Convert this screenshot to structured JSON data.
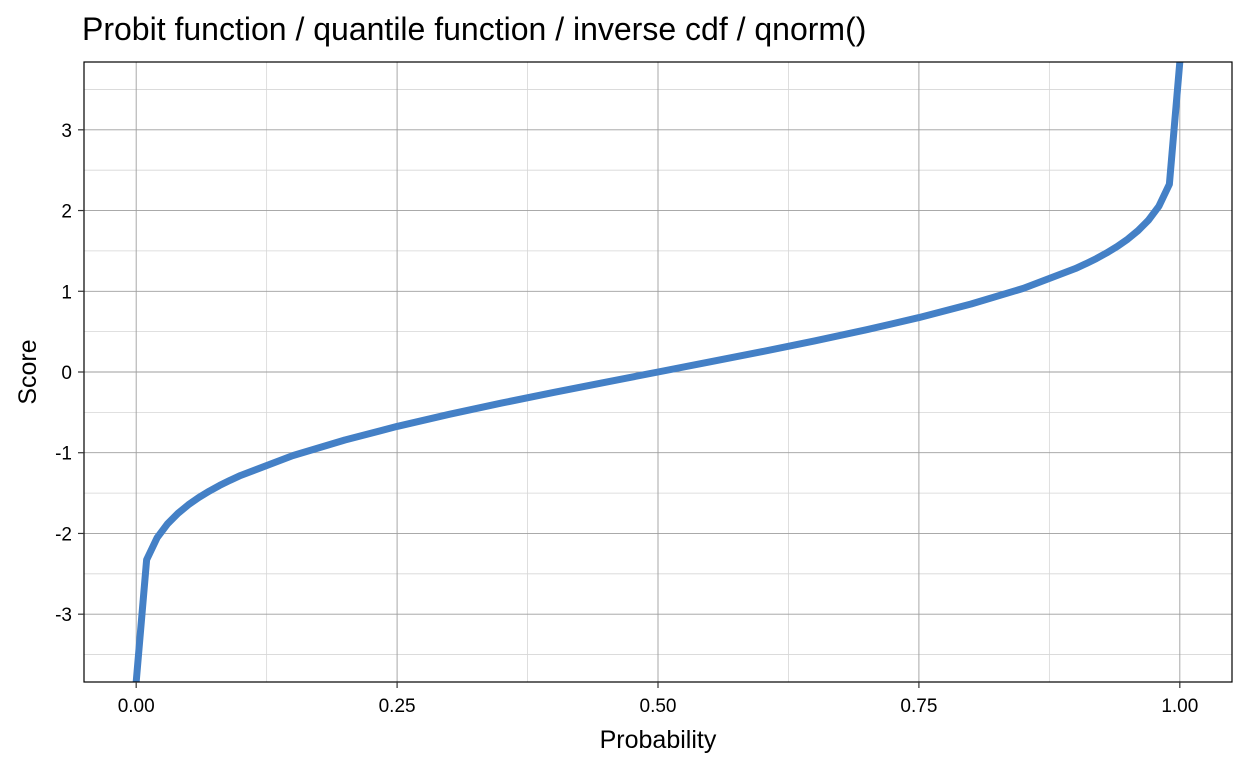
{
  "chart_data": {
    "type": "line",
    "title": "Probit function / quantile function / inverse cdf / qnorm()",
    "xlabel": "Probability",
    "ylabel": "Score",
    "xlim": [
      -0.05,
      1.05
    ],
    "ylim": [
      -3.84,
      3.84
    ],
    "x_ticks": [
      0,
      0.25,
      0.5,
      0.75,
      1
    ],
    "x_tick_labels": [
      "0.00",
      "0.25",
      "0.50",
      "0.75",
      "1.00"
    ],
    "y_ticks": [
      -3,
      -2,
      -1,
      0,
      1,
      2,
      3
    ],
    "y_tick_labels": [
      "-3",
      "-2",
      "-1",
      "0",
      "1",
      "2",
      "3"
    ],
    "grid": true,
    "legend": "none",
    "series": [
      {
        "color": "#4480c6",
        "x": [
          0,
          0.01,
          0.02,
          0.03,
          0.04,
          0.05,
          0.06,
          0.07,
          0.08,
          0.09,
          0.1,
          0.15,
          0.2,
          0.25,
          0.3,
          0.35,
          0.4,
          0.45,
          0.5,
          0.55,
          0.6,
          0.65,
          0.7,
          0.75,
          0.8,
          0.85,
          0.9,
          0.91,
          0.92,
          0.93,
          0.94,
          0.95,
          0.96,
          0.97,
          0.98,
          0.99,
          1
        ],
        "y": [
          -3.84,
          -2.326,
          -2.054,
          -1.881,
          -1.751,
          -1.645,
          -1.555,
          -1.476,
          -1.405,
          -1.341,
          -1.282,
          -1.036,
          -0.842,
          -0.674,
          -0.524,
          -0.385,
          -0.253,
          -0.126,
          0,
          0.126,
          0.253,
          0.385,
          0.524,
          0.674,
          0.842,
          1.036,
          1.282,
          1.341,
          1.405,
          1.476,
          1.555,
          1.645,
          1.751,
          1.881,
          2.054,
          2.326,
          3.84
        ]
      }
    ]
  }
}
